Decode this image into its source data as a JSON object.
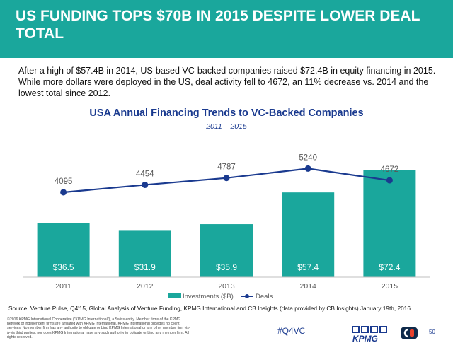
{
  "header": {
    "title": "US FUNDING TOPS $70B IN 2015 DESPITE LOWER DEAL TOTAL"
  },
  "intro": {
    "text": "After a high of $57.4B in 2014, US-based VC-backed companies raised $72.4B in equity financing in 2015. While more dollars were deployed in the US, deal activity fell to 4672, an 11% decrease vs. 2014 and the lowest total since 2012."
  },
  "chart_data": {
    "type": "bar",
    "title": "USA Annual Financing Trends to VC-Backed Companies",
    "subtitle": "2011 – 2015",
    "categories": [
      "2011",
      "2012",
      "2013",
      "2014",
      "2015"
    ],
    "series": [
      {
        "name": "Investments ($B)",
        "type": "bar",
        "values": [
          36.5,
          31.9,
          35.9,
          57.4,
          72.4
        ],
        "labels": [
          "$36.5",
          "$31.9",
          "$35.9",
          "$57.4",
          "$72.4"
        ],
        "color": "#1aa79c"
      },
      {
        "name": "Deals",
        "type": "line",
        "values": [
          4095,
          4454,
          4787,
          5240,
          4672
        ],
        "labels": [
          "4095",
          "4454",
          "4787",
          "5240",
          "4672"
        ],
        "color": "#1a3a8f"
      }
    ],
    "ylim_bars": [
      0,
      80
    ],
    "ylim_line": [
      0,
      5800
    ],
    "grid": false,
    "legend_position": "bottom"
  },
  "footer": {
    "source": "Source: Venture Pulse, Q4'15, Global Analysis of Venture Funding, KPMG International and CB Insights (data provided by CB Insights) January 19th, 2016",
    "copyright": "©2016 KPMG International Cooperative (\"KPMG International\"), a Swiss entity. Member firms of the KPMG network of independent firms are affiliated with KPMG International. KPMG International provides no client services. No member firm has any authority to obligate or bind KPMG International or any other member firm vis-à-vis third parties, nor does KPMG International have any such authority to obligate or bind any member firm. All rights reserved.",
    "hashtag": "#Q4VC",
    "kpmg_logo_text": "KPMG",
    "page_number": "50"
  }
}
